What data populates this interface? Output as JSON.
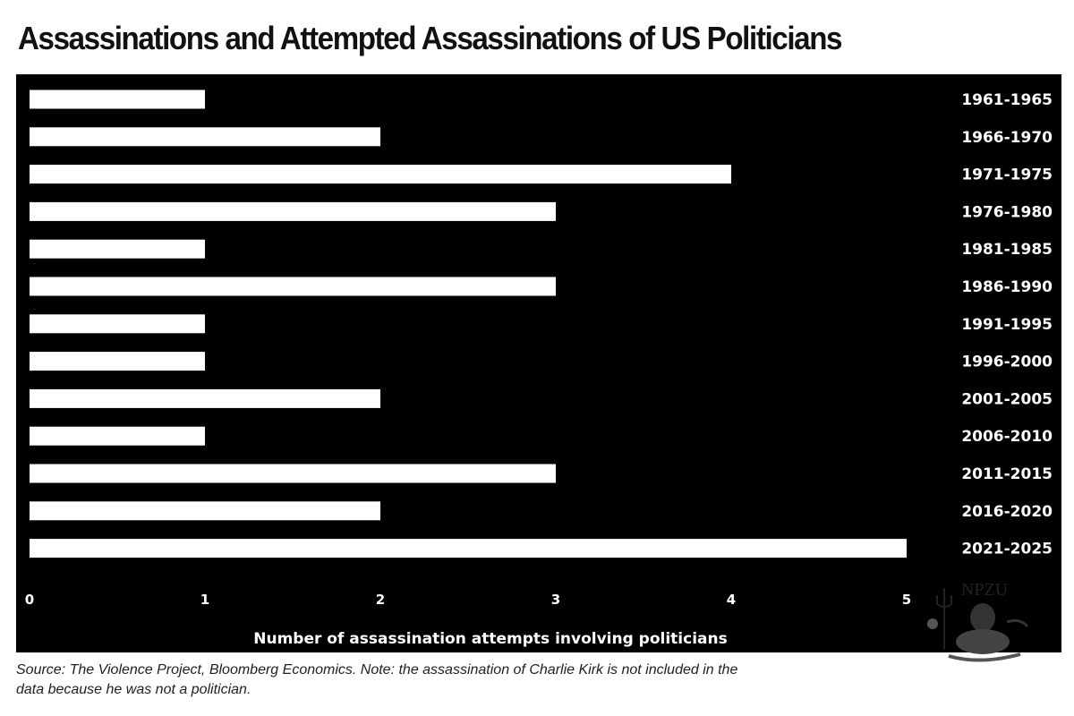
{
  "chart_data": {
    "type": "bar",
    "orientation": "horizontal",
    "title": "Assassinations and Attempted Assassinations of US Politicians",
    "xlabel": "Number of assassination attempts involving politicians",
    "ylabel": "",
    "categories": [
      "1961-1965",
      "1966-1970",
      "1971-1975",
      "1976-1980",
      "1981-1985",
      "1986-1990",
      "1991-1995",
      "1996-2000",
      "2001-2005",
      "2006-2010",
      "2011-2015",
      "2016-2020",
      "2021-2025"
    ],
    "values": [
      1,
      2,
      4,
      3,
      1,
      3,
      1,
      1,
      2,
      1,
      3,
      2,
      5
    ],
    "xlim": [
      0,
      5
    ],
    "xticks": [
      0,
      1,
      2,
      3,
      4,
      5
    ],
    "grid": false,
    "category_label_side": "right",
    "bar_color": "#ffffff",
    "background_color": "#000000"
  },
  "footer": {
    "source_note": "Source: The Violence Project, Bloomberg Economics. Note: the assassination of Charlie Kirk is not included in the data because he was not a politician."
  },
  "watermark": {
    "text": "NPZU"
  }
}
